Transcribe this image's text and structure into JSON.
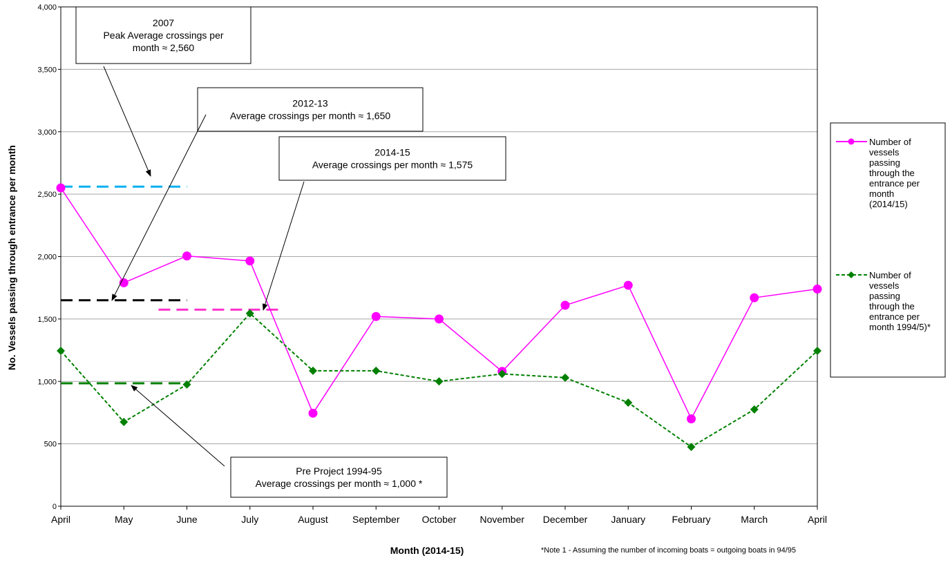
{
  "chart_data": {
    "type": "line",
    "categories": [
      "April",
      "May",
      "June",
      "July",
      "August",
      "September",
      "October",
      "November",
      "December",
      "January",
      "February",
      "March",
      "April"
    ],
    "ylabel": "No. Vessels passing through entrance per month",
    "xlabel": "Month (2014-15)",
    "ylim": [
      0,
      4000
    ],
    "yticks": [
      0,
      500,
      1000,
      1500,
      2000,
      2500,
      3000,
      3500,
      4000
    ],
    "ytick_labels": [
      "0",
      "500",
      "1,000",
      "1,500",
      "2,000",
      "2,500",
      "3,000",
      "3,500",
      "4,000"
    ],
    "grid": true,
    "legend_position": "right",
    "series": [
      {
        "name": "Number of vessels passing through the entrance per month (2014/15)",
        "legend_lines": [
          "Number of",
          "vessels",
          "passing",
          "through the",
          "entrance per",
          "month",
          "(2014/15)"
        ],
        "color": "#ff00ff",
        "marker": "circle",
        "line_style": "solid",
        "values": [
          2550,
          1790,
          2005,
          1965,
          745,
          1520,
          1500,
          1080,
          1610,
          1770,
          700,
          1670,
          1740
        ]
      },
      {
        "name": "Number of vessels passing through the entrance per month 1994/5)*",
        "legend_lines": [
          "Number of",
          "vessels",
          "passing",
          "through the",
          "entrance per",
          "month 1994/5)*"
        ],
        "color": "#008000",
        "marker": "diamond",
        "line_style": "dashed",
        "values": [
          1245,
          675,
          975,
          1545,
          1085,
          1085,
          1000,
          1060,
          1030,
          830,
          475,
          775,
          1245
        ]
      }
    ],
    "reference_lines": [
      {
        "value": 2560,
        "color": "#00b0f0",
        "x_from": 0,
        "x_to": 2
      },
      {
        "value": 1650,
        "color": "#000000",
        "x_from": 0,
        "x_to": 2
      },
      {
        "value": 1575,
        "color": "#ff33cc",
        "x_from": 1.55,
        "x_to": 3.45
      },
      {
        "value": 985,
        "color": "#008000",
        "x_from": 0,
        "x_to": 2
      }
    ],
    "annotations": [
      {
        "lines": [
          "2007",
          "Peak Average crossings per",
          "month ≈ 2,560"
        ]
      },
      {
        "lines": [
          "2012-13",
          "Average crossings per month ≈ 1,650"
        ]
      },
      {
        "lines": [
          "2014-15",
          "Average crossings per month ≈ 1,575"
        ]
      },
      {
        "lines": [
          "Pre Project 1994-95",
          "Average crossings per month ≈ 1,000 *"
        ]
      }
    ],
    "footnote": "*Note 1 - Assuming the number of incoming boats = outgoing boats in 94/95"
  }
}
